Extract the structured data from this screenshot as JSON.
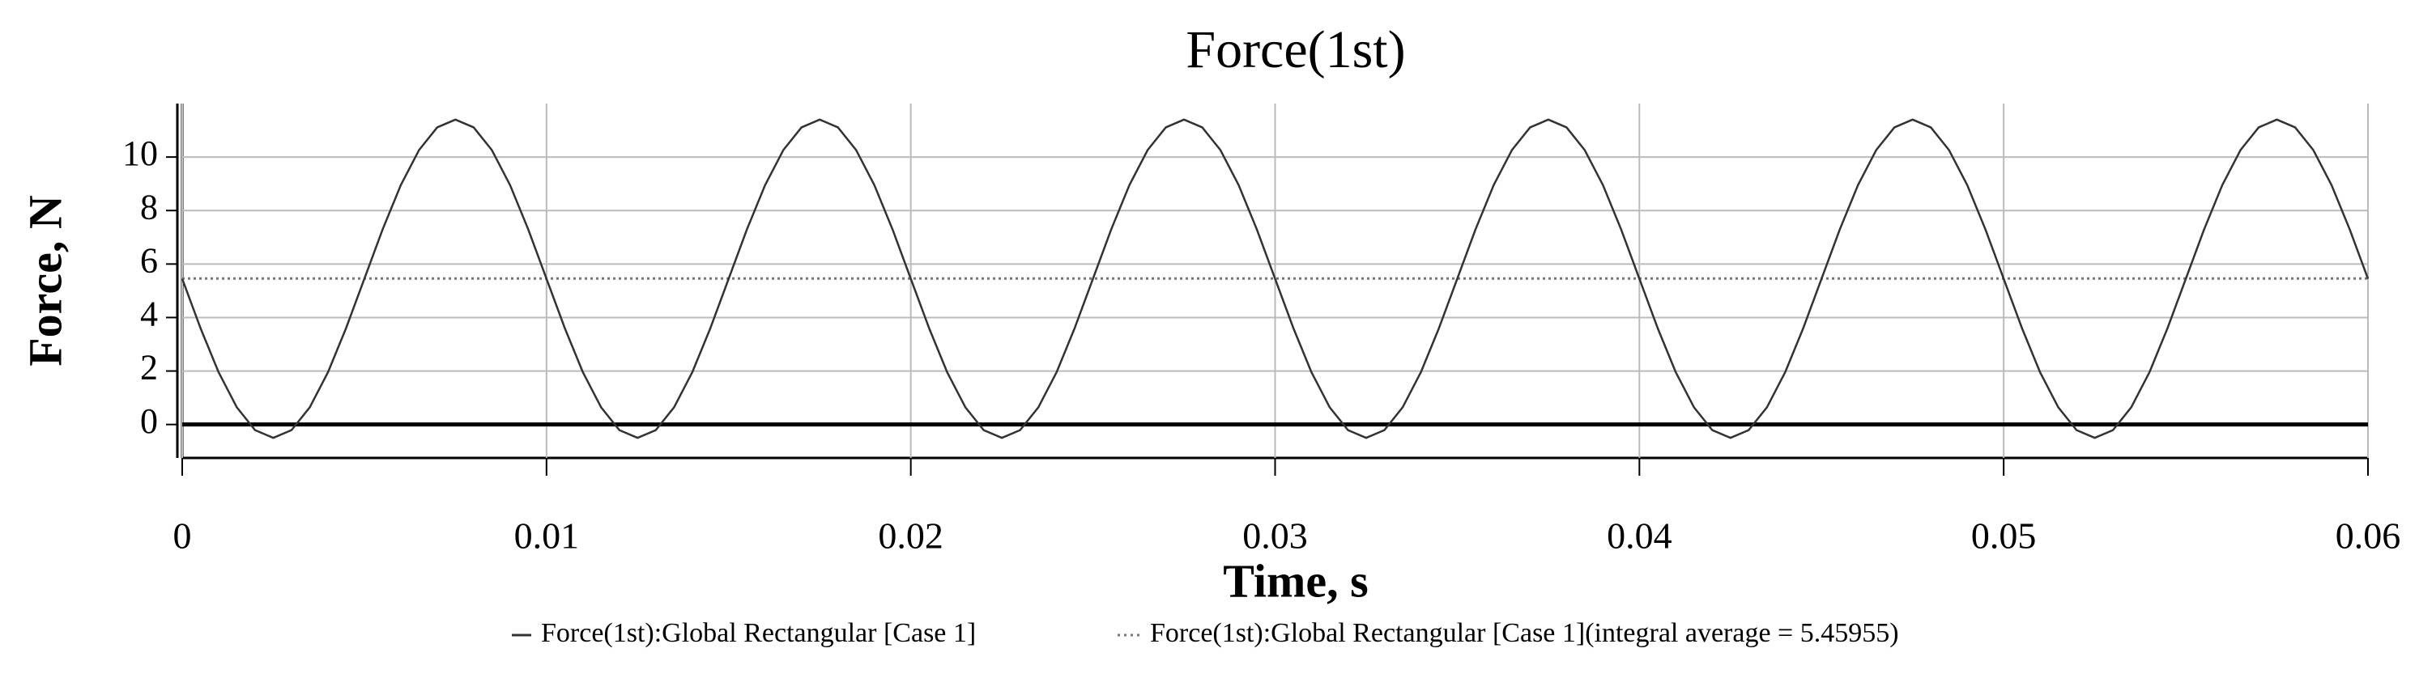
{
  "chart_data": {
    "type": "line",
    "title": "Force(1st)",
    "x_label": "Time, s",
    "y_label": "Force, N",
    "x": [
      0,
      0.0005,
      0.001,
      0.0015,
      0.002,
      0.0025,
      0.003,
      0.0035,
      0.004,
      0.0045,
      0.005,
      0.0055,
      0.006,
      0.0065,
      0.007,
      0.0075,
      0.008,
      0.0085,
      0.009,
      0.0095,
      0.01,
      0.0105,
      0.011,
      0.0115,
      0.012,
      0.0125,
      0.013,
      0.0135,
      0.014,
      0.0145,
      0.015,
      0.0155,
      0.016,
      0.0165,
      0.017,
      0.0175,
      0.018,
      0.0185,
      0.019,
      0.0195,
      0.02,
      0.0205,
      0.021,
      0.0215,
      0.022,
      0.0225,
      0.023,
      0.0235,
      0.024,
      0.0245,
      0.025,
      0.0255,
      0.026,
      0.0265,
      0.027,
      0.0275,
      0.028,
      0.0285,
      0.029,
      0.0295,
      0.03,
      0.0305,
      0.031,
      0.0315,
      0.032,
      0.0325,
      0.033,
      0.0335,
      0.034,
      0.0345,
      0.035,
      0.0355,
      0.036,
      0.0365,
      0.037,
      0.0375,
      0.038,
      0.0385,
      0.039,
      0.0395,
      0.04,
      0.0405,
      0.041,
      0.0415,
      0.042,
      0.0425,
      0.043,
      0.0435,
      0.044,
      0.0445,
      0.045,
      0.0455,
      0.046,
      0.0465,
      0.047,
      0.0475,
      0.048,
      0.0485,
      0.049,
      0.0495,
      0.05,
      0.0505,
      0.051,
      0.0515,
      0.052,
      0.0525,
      0.053,
      0.0535,
      0.054,
      0.0545,
      0.055,
      0.0555,
      0.056,
      0.0565,
      0.057,
      0.0575,
      0.058,
      0.0585,
      0.059,
      0.0595,
      0.06
    ],
    "series": [
      {
        "name": "Force(1st):Global Rectangular [Case 1]",
        "color": "#333333",
        "values": [
          5.45,
          3.61,
          1.95,
          0.64,
          -0.21,
          -0.5,
          -0.21,
          0.64,
          1.95,
          3.61,
          5.45,
          7.29,
          8.95,
          10.26,
          11.11,
          11.4,
          11.11,
          10.26,
          8.95,
          7.29,
          5.45,
          3.61,
          1.95,
          0.64,
          -0.21,
          -0.5,
          -0.21,
          0.64,
          1.95,
          3.61,
          5.45,
          7.29,
          8.95,
          10.26,
          11.11,
          11.4,
          11.11,
          10.26,
          8.95,
          7.29,
          5.45,
          3.61,
          1.95,
          0.64,
          -0.21,
          -0.5,
          -0.21,
          0.64,
          1.95,
          3.61,
          5.45,
          7.29,
          8.95,
          10.26,
          11.11,
          11.4,
          11.11,
          10.26,
          8.95,
          7.29,
          5.45,
          3.61,
          1.95,
          0.64,
          -0.21,
          -0.5,
          -0.21,
          0.64,
          1.95,
          3.61,
          5.45,
          7.29,
          8.95,
          10.26,
          11.11,
          11.4,
          11.11,
          10.26,
          8.95,
          7.29,
          5.45,
          3.61,
          1.95,
          0.64,
          -0.21,
          -0.5,
          -0.21,
          0.64,
          1.95,
          3.61,
          5.45,
          7.29,
          8.95,
          10.26,
          11.11,
          11.4,
          11.11,
          10.26,
          8.95,
          7.29,
          5.45,
          3.61,
          1.95,
          0.64,
          -0.21,
          -0.5,
          -0.21,
          0.64,
          1.95,
          3.61,
          5.45,
          7.29,
          8.95,
          10.26,
          11.11,
          11.4,
          11.11,
          10.26,
          8.95,
          7.29,
          5.45
        ]
      }
    ],
    "average": {
      "name": "Force(1st):Global Rectangular [Case 1](integral average = 5.45955)",
      "value": 5.45955,
      "color": "#777777"
    },
    "xlim": [
      0,
      0.06
    ],
    "xticks": [
      0,
      0.01,
      0.02,
      0.03,
      0.04,
      0.05,
      0.06
    ],
    "ylim": [
      -1.25,
      12
    ],
    "yticks": [
      0,
      2,
      4,
      6,
      8,
      10
    ],
    "grid": true
  }
}
